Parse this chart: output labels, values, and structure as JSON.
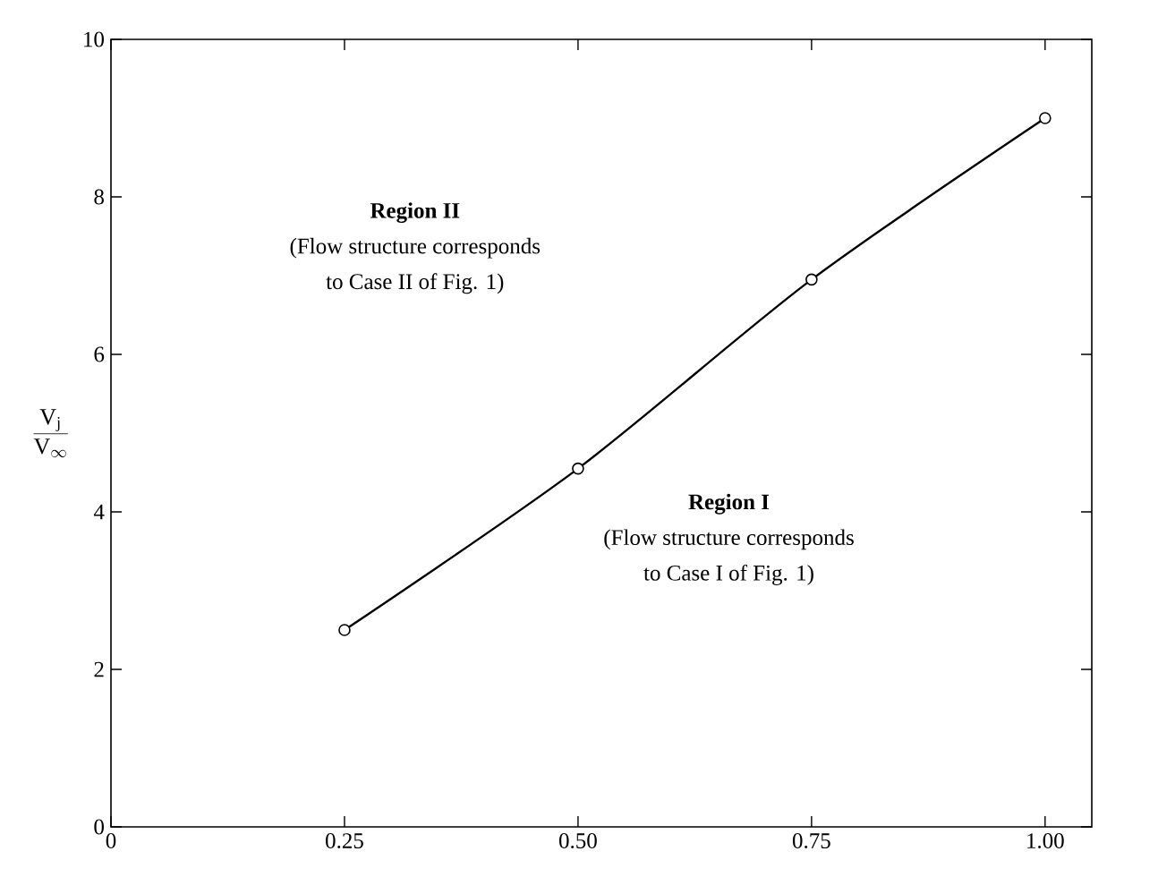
{
  "chart_data": {
    "type": "line",
    "ylabel": "\\frac{\\mathrm{V_j}}{\\mathrm{V_\\infty}}",
    "x": [
      0.25,
      0.5,
      0.75,
      1.0
    ],
    "series": [
      {
        "color": "#000000",
        "values": [
          2.5,
          4.55,
          6.95,
          9.0
        ]
      }
    ],
    "xlim": [
      0,
      1.05
    ],
    "ylim": [
      0,
      10
    ],
    "xticks": [
      0,
      0.25,
      {
        "value": 0.5,
        "label": "0.50"
      },
      0.75,
      {
        "value": 1.0,
        "label": "1.00"
      }
    ],
    "yticks": [
      0,
      2,
      4,
      6,
      8,
      10
    ],
    "marker": "circle",
    "line_style": "solid",
    "annotations": [
      "**Region II**",
      "(Flow structure corresponds",
      "to Case II of Fig. 1)",
      "**Region I**",
      "(Flow structure corresponds",
      "to Case I of Fig. 1)"
    ]
  }
}
